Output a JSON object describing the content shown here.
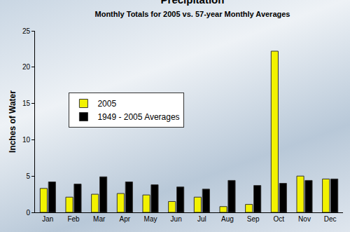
{
  "chart_data": {
    "type": "bar",
    "title": "Precipitation",
    "subtitle": "Monthly Totals for 2005 vs. 57-year Monthly Averages",
    "y_label": "Inches of Water",
    "categories": [
      "Jan",
      "Feb",
      "Mar",
      "Apr",
      "May",
      "Jun",
      "Jul",
      "Aug",
      "Sep",
      "Oct",
      "Nov",
      "Dec"
    ],
    "series": [
      {
        "name": "2005",
        "color": "#f2f200",
        "values": [
          3.3,
          2.1,
          2.5,
          2.6,
          2.4,
          1.5,
          2.1,
          0.8,
          1.1,
          22.2,
          5.0,
          4.6
        ]
      },
      {
        "name": "1949 - 2005 Averages",
        "color": "#000000",
        "values": [
          4.2,
          3.9,
          4.9,
          4.2,
          3.8,
          3.5,
          3.2,
          4.4,
          3.7,
          4.0,
          4.4,
          4.6
        ]
      }
    ],
    "ylim": [
      0,
      25
    ],
    "yticks": [
      0,
      5,
      10,
      15,
      20,
      25
    ],
    "grid": false,
    "legend": "upper left"
  }
}
